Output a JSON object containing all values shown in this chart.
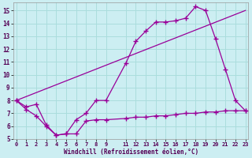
{
  "background_color": "#cceef2",
  "grid_color": "#aadddd",
  "line_color": "#990099",
  "xlim": [
    -0.3,
    23.3
  ],
  "ylim": [
    5,
    15.6
  ],
  "xtick_pos": [
    0,
    1,
    2,
    3,
    4,
    5,
    6,
    7,
    8,
    9,
    11,
    12,
    13,
    14,
    15,
    16,
    17,
    18,
    19,
    20,
    21,
    22,
    23
  ],
  "xtick_labels": [
    "0",
    "1",
    "2",
    "3",
    "4",
    "5",
    "6",
    "7",
    "8",
    "9",
    "11",
    "12",
    "13",
    "14",
    "15",
    "16",
    "17",
    "18",
    "19",
    "20",
    "21",
    "22",
    "23"
  ],
  "ytick_pos": [
    5,
    6,
    7,
    8,
    9,
    10,
    11,
    12,
    13,
    14,
    15
  ],
  "ytick_labels": [
    "5",
    "6",
    "7",
    "8",
    "9",
    "10",
    "11",
    "12",
    "13",
    "14",
    "15"
  ],
  "xlabel": "Windchill (Refroidissement éolien,°C)",
  "line1_x": [
    0,
    1,
    2,
    3,
    4,
    5,
    6,
    7,
    8,
    9,
    11,
    12,
    13,
    14,
    15,
    16,
    17,
    18,
    19,
    20,
    21,
    22,
    23
  ],
  "line1_y": [
    8.0,
    7.5,
    7.7,
    6.1,
    5.3,
    5.4,
    6.5,
    7.0,
    8.0,
    8.0,
    10.9,
    12.6,
    13.4,
    14.1,
    14.1,
    14.2,
    14.4,
    15.3,
    15.0,
    12.8,
    10.4,
    8.0,
    7.2
  ],
  "line2_x": [
    0,
    23
  ],
  "line2_y": [
    8.0,
    15.0
  ],
  "line3_x": [
    0,
    1,
    2,
    3,
    4,
    5,
    6,
    7,
    8,
    9,
    11,
    12,
    13,
    14,
    15,
    16,
    17,
    18,
    19,
    20,
    21,
    22,
    23
  ],
  "line3_y": [
    8.0,
    7.3,
    6.8,
    6.0,
    5.3,
    5.4,
    5.4,
    6.4,
    6.5,
    6.5,
    6.6,
    6.7,
    6.7,
    6.8,
    6.8,
    6.9,
    7.0,
    7.0,
    7.1,
    7.1,
    7.2,
    7.2,
    7.2
  ]
}
